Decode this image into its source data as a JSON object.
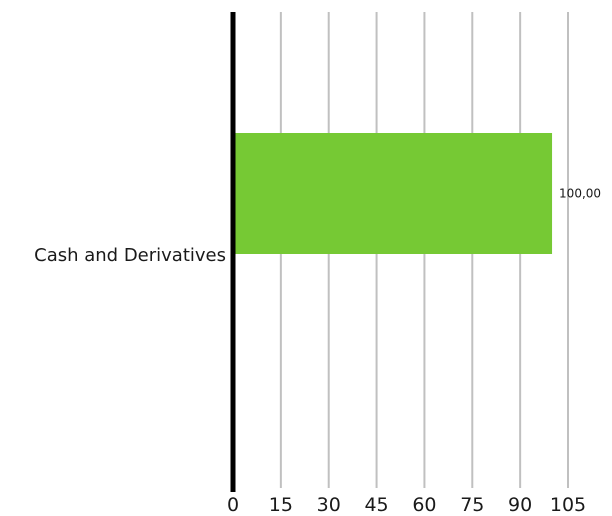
{
  "chart_data": {
    "type": "bar",
    "orientation": "horizontal",
    "title": "",
    "xlabel": "",
    "ylabel": "",
    "categories": [
      "Cash and Derivatives"
    ],
    "values": [
      100
    ],
    "data_labels": [
      "100,00"
    ],
    "xlim": [
      0,
      105
    ],
    "xticks": [
      0,
      15,
      30,
      45,
      60,
      75,
      90,
      105
    ],
    "grid": "vertical",
    "legend": "none",
    "colors": {
      "bar": "#76c934",
      "grid": "#c0c0c0",
      "axis": "#000000",
      "text": "#1a1a1a"
    }
  }
}
